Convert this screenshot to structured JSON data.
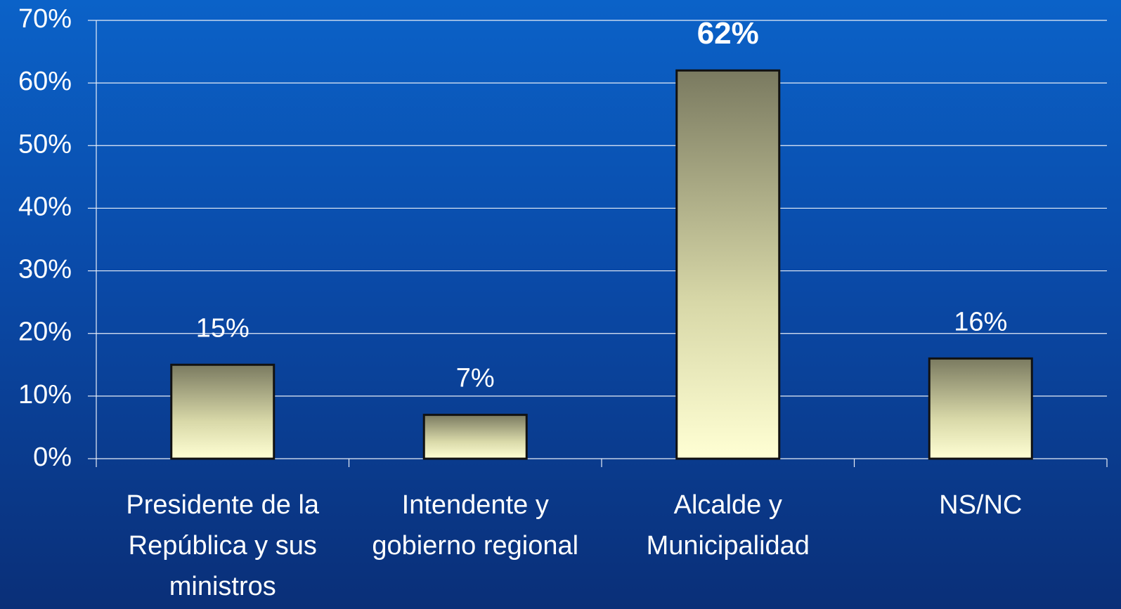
{
  "chart_data": {
    "type": "bar",
    "categories": [
      "Presidente de la República y sus ministros",
      "Intendente y gobierno regional",
      "Alcalde y Municipalidad",
      "NS/NC"
    ],
    "values": [
      15,
      7,
      62,
      16
    ],
    "value_labels": [
      "15%",
      "7%",
      "62%",
      "16%"
    ],
    "ylim": [
      0,
      70
    ],
    "yticks": [
      {
        "value": 0,
        "label": "0%"
      },
      {
        "value": 10,
        "label": "10%"
      },
      {
        "value": 20,
        "label": "20%"
      },
      {
        "value": 30,
        "label": "30%"
      },
      {
        "value": 40,
        "label": "40%"
      },
      {
        "value": 50,
        "label": "50%"
      },
      {
        "value": 60,
        "label": "60%"
      },
      {
        "value": 70,
        "label": "70%"
      }
    ],
    "grid": true
  }
}
